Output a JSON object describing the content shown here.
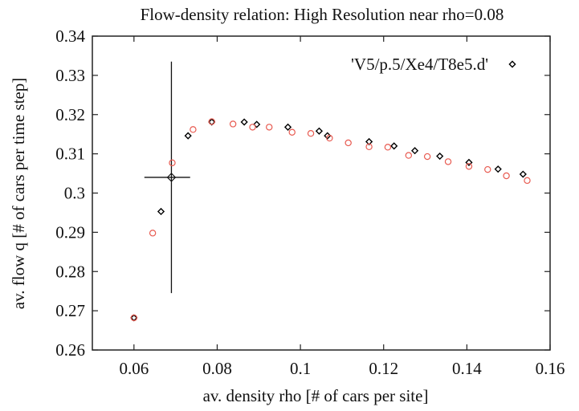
{
  "chart_data": {
    "type": "scatter",
    "title": "Flow-density relation: High Resolution near rho=0.08",
    "xlabel": "av. density rho [# of cars per site]",
    "ylabel": "av. flow q [# of cars per time step]",
    "xlim": [
      0.05,
      0.16
    ],
    "ylim": [
      0.26,
      0.34
    ],
    "grid": false,
    "legend_position": "top-right",
    "xticks": [
      "0.06",
      "0.08",
      "0.1",
      "0.12",
      "0.14",
      "0.16"
    ],
    "yticks": [
      "0.26",
      "0.27",
      "0.28",
      "0.29",
      "0.3",
      "0.31",
      "0.32",
      "0.33",
      "0.34"
    ],
    "series": [
      {
        "name": "'V5/p.5/Xe4/T8e5.d'",
        "marker": "diamond",
        "color": "#000000",
        "points": [
          [
            0.06,
            0.2682
          ],
          [
            0.0665,
            0.2953
          ],
          [
            0.073,
            0.3146
          ],
          [
            0.0787,
            0.3181
          ],
          [
            0.0865,
            0.3181
          ],
          [
            0.0895,
            0.3175
          ],
          [
            0.097,
            0.3168
          ],
          [
            0.1045,
            0.3158
          ],
          [
            0.1065,
            0.3146
          ],
          [
            0.1165,
            0.3131
          ],
          [
            0.1225,
            0.312
          ],
          [
            0.1275,
            0.3108
          ],
          [
            0.1335,
            0.3094
          ],
          [
            0.1405,
            0.3078
          ],
          [
            0.1475,
            0.3061
          ],
          [
            0.1535,
            0.3048
          ]
        ]
      },
      {
        "marker": "circle",
        "color": "#e85a50",
        "points": [
          [
            0.06,
            0.2682
          ],
          [
            0.0645,
            0.2898
          ],
          [
            0.0692,
            0.3077
          ],
          [
            0.0742,
            0.3162
          ],
          [
            0.0787,
            0.3182
          ],
          [
            0.0838,
            0.3176
          ],
          [
            0.0885,
            0.3168
          ],
          [
            0.0925,
            0.3168
          ],
          [
            0.098,
            0.3155
          ],
          [
            0.1025,
            0.3152
          ],
          [
            0.107,
            0.314
          ],
          [
            0.1115,
            0.3128
          ],
          [
            0.1165,
            0.3118
          ],
          [
            0.121,
            0.3117
          ],
          [
            0.126,
            0.3096
          ],
          [
            0.1305,
            0.3093
          ],
          [
            0.1355,
            0.308
          ],
          [
            0.1405,
            0.3068
          ],
          [
            0.145,
            0.306
          ],
          [
            0.1495,
            0.3044
          ],
          [
            0.1545,
            0.3032
          ]
        ]
      }
    ],
    "annotations": [
      {
        "type": "errorbar-cross",
        "center": [
          0.069,
          0.304
        ],
        "x_range": [
          0.0625,
          0.0735
        ],
        "y_range": [
          0.2745,
          0.3335
        ]
      }
    ]
  }
}
